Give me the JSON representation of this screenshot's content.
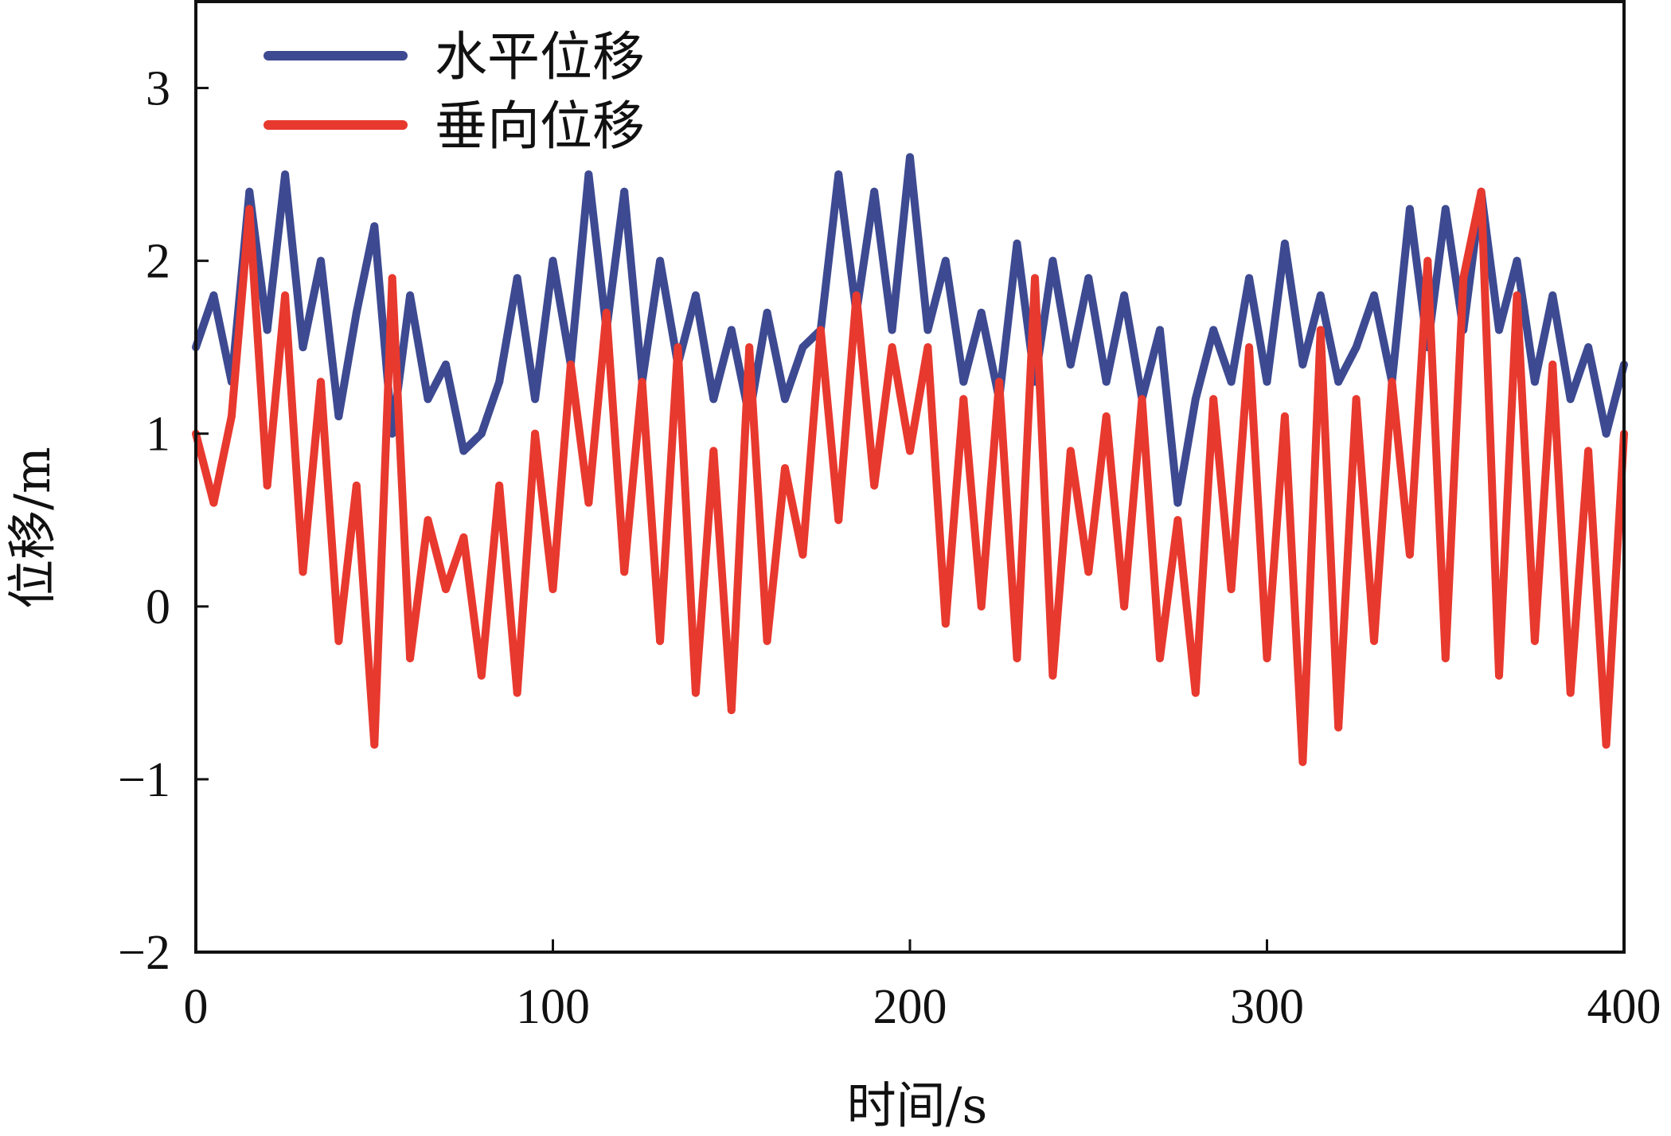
{
  "chart_data": {
    "type": "line",
    "title": "",
    "xlabel": "时间/s",
    "ylabel": "位移/m",
    "xlim": [
      0,
      400
    ],
    "ylim": [
      -2,
      3.5
    ],
    "xticks": [
      0,
      100,
      200,
      300,
      400
    ],
    "xtick_labels": [
      "0",
      "100",
      "200",
      "300",
      "400"
    ],
    "yticks": [
      -2,
      -1,
      0,
      1,
      2,
      3
    ],
    "ytick_labels": [
      "−2",
      "−1",
      "0",
      "1",
      "2",
      "3"
    ],
    "grid": false,
    "legend_position": "top-left",
    "x": [
      0,
      5,
      10,
      15,
      20,
      25,
      30,
      35,
      40,
      45,
      50,
      55,
      60,
      65,
      70,
      75,
      80,
      85,
      90,
      95,
      100,
      105,
      110,
      115,
      120,
      125,
      130,
      135,
      140,
      145,
      150,
      155,
      160,
      165,
      170,
      175,
      180,
      185,
      190,
      195,
      200,
      205,
      210,
      215,
      220,
      225,
      230,
      235,
      240,
      245,
      250,
      255,
      260,
      265,
      270,
      275,
      280,
      285,
      290,
      295,
      300,
      305,
      310,
      315,
      320,
      325,
      330,
      335,
      340,
      345,
      350,
      355,
      360,
      365,
      370,
      375,
      380,
      385,
      390,
      395,
      400
    ],
    "series": [
      {
        "name": "水平位移",
        "color": "#3d4a91",
        "values": [
          1.5,
          1.8,
          1.3,
          2.4,
          1.6,
          2.5,
          1.5,
          2.0,
          1.1,
          1.7,
          2.2,
          1.0,
          1.8,
          1.2,
          1.4,
          0.9,
          1.0,
          1.3,
          1.9,
          1.2,
          2.0,
          1.4,
          2.5,
          1.6,
          2.4,
          1.3,
          2.0,
          1.4,
          1.8,
          1.2,
          1.6,
          1.1,
          1.7,
          1.2,
          1.5,
          1.6,
          2.5,
          1.7,
          2.4,
          1.6,
          2.6,
          1.6,
          2.0,
          1.3,
          1.7,
          1.2,
          2.1,
          1.3,
          2.0,
          1.4,
          1.9,
          1.3,
          1.8,
          1.2,
          1.6,
          0.6,
          1.2,
          1.6,
          1.3,
          1.9,
          1.3,
          2.1,
          1.4,
          1.8,
          1.3,
          1.5,
          1.8,
          1.3,
          2.3,
          1.5,
          2.3,
          1.6,
          2.4,
          1.6,
          2.0,
          1.3,
          1.8,
          1.2,
          1.5,
          1.0,
          1.4
        ]
      },
      {
        "name": "垂向位移",
        "color": "#e8392f",
        "values": [
          1.0,
          0.6,
          1.1,
          2.3,
          0.7,
          1.8,
          0.2,
          1.3,
          -0.2,
          0.7,
          -0.8,
          1.9,
          -0.3,
          0.5,
          0.1,
          0.4,
          -0.4,
          0.7,
          -0.5,
          1.0,
          0.1,
          1.4,
          0.6,
          1.7,
          0.2,
          1.3,
          -0.2,
          1.5,
          -0.5,
          0.9,
          -0.6,
          1.5,
          -0.2,
          0.8,
          0.3,
          1.6,
          0.5,
          1.8,
          0.7,
          1.5,
          0.9,
          1.5,
          -0.1,
          1.2,
          0.0,
          1.3,
          -0.3,
          1.9,
          -0.4,
          0.9,
          0.2,
          1.1,
          0.0,
          1.2,
          -0.3,
          0.5,
          -0.5,
          1.2,
          0.1,
          1.5,
          -0.3,
          1.1,
          -0.9,
          1.6,
          -0.7,
          1.2,
          -0.2,
          1.3,
          0.3,
          2.0,
          -0.3,
          1.9,
          2.4,
          -0.4,
          1.8,
          -0.2,
          1.4,
          -0.5,
          0.9,
          -0.8,
          1.0
        ]
      }
    ]
  }
}
